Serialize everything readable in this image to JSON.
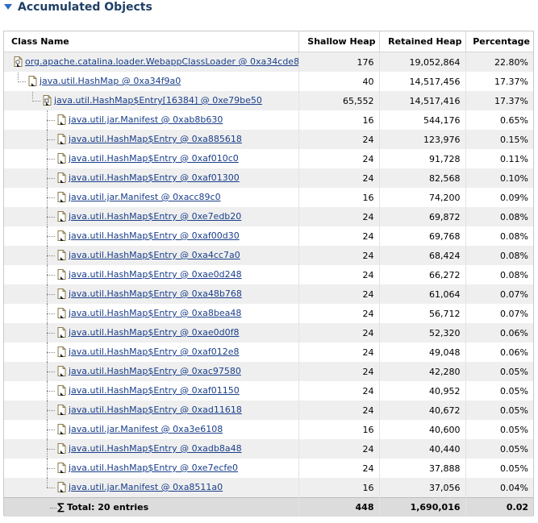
{
  "section": {
    "title": "Accumulated Objects"
  },
  "table": {
    "headers": {
      "class_name": "Class Name",
      "shallow": "Shallow Heap",
      "retained": "Retained Heap",
      "percentage": "Percentage"
    },
    "rows": [
      {
        "name": "org.apache.catalina.loader.WebappClassLoader @ 0xa34cde8",
        "shallow": "176",
        "retained": "19,052,864",
        "pct": "22.80%",
        "depth": 0,
        "icon": "class-loader-icon"
      },
      {
        "name": "java.util.HashMap @ 0xa34f9a0",
        "shallow": "40",
        "retained": "14,517,456",
        "pct": "17.37%",
        "depth": 1,
        "icon": "object-icon"
      },
      {
        "name": "java.util.HashMap$Entry[16384] @ 0xe79be50",
        "shallow": "65,552",
        "retained": "14,517,416",
        "pct": "17.37%",
        "depth": 2,
        "icon": "array-icon"
      },
      {
        "name": "java.util.jar.Manifest @ 0xab8b630",
        "shallow": "16",
        "retained": "544,176",
        "pct": "0.65%",
        "depth": 3,
        "icon": "object-icon"
      },
      {
        "name": "java.util.HashMap$Entry @ 0xa885618",
        "shallow": "24",
        "retained": "123,976",
        "pct": "0.15%",
        "depth": 3,
        "icon": "object-icon"
      },
      {
        "name": "java.util.HashMap$Entry @ 0xaf010c0",
        "shallow": "24",
        "retained": "91,728",
        "pct": "0.11%",
        "depth": 3,
        "icon": "object-icon"
      },
      {
        "name": "java.util.HashMap$Entry @ 0xaf01300",
        "shallow": "24",
        "retained": "82,568",
        "pct": "0.10%",
        "depth": 3,
        "icon": "object-icon"
      },
      {
        "name": "java.util.jar.Manifest @ 0xacc89c0",
        "shallow": "16",
        "retained": "74,200",
        "pct": "0.09%",
        "depth": 3,
        "icon": "object-icon"
      },
      {
        "name": "java.util.HashMap$Entry @ 0xe7edb20",
        "shallow": "24",
        "retained": "69,872",
        "pct": "0.08%",
        "depth": 3,
        "icon": "object-icon"
      },
      {
        "name": "java.util.HashMap$Entry @ 0xaf00d30",
        "shallow": "24",
        "retained": "69,768",
        "pct": "0.08%",
        "depth": 3,
        "icon": "object-icon"
      },
      {
        "name": "java.util.HashMap$Entry @ 0xa4cc7a0",
        "shallow": "24",
        "retained": "68,424",
        "pct": "0.08%",
        "depth": 3,
        "icon": "object-icon"
      },
      {
        "name": "java.util.HashMap$Entry @ 0xae0d248",
        "shallow": "24",
        "retained": "66,272",
        "pct": "0.08%",
        "depth": 3,
        "icon": "object-icon"
      },
      {
        "name": "java.util.HashMap$Entry @ 0xa48b768",
        "shallow": "24",
        "retained": "61,064",
        "pct": "0.07%",
        "depth": 3,
        "icon": "object-icon"
      },
      {
        "name": "java.util.HashMap$Entry @ 0xa8bea48",
        "shallow": "24",
        "retained": "56,712",
        "pct": "0.07%",
        "depth": 3,
        "icon": "object-icon"
      },
      {
        "name": "java.util.HashMap$Entry @ 0xae0d0f8",
        "shallow": "24",
        "retained": "52,320",
        "pct": "0.06%",
        "depth": 3,
        "icon": "object-icon"
      },
      {
        "name": "java.util.HashMap$Entry @ 0xaf012e8",
        "shallow": "24",
        "retained": "49,048",
        "pct": "0.06%",
        "depth": 3,
        "icon": "object-icon"
      },
      {
        "name": "java.util.HashMap$Entry @ 0xac97580",
        "shallow": "24",
        "retained": "42,280",
        "pct": "0.05%",
        "depth": 3,
        "icon": "object-icon"
      },
      {
        "name": "java.util.HashMap$Entry @ 0xaf01150",
        "shallow": "24",
        "retained": "40,952",
        "pct": "0.05%",
        "depth": 3,
        "icon": "object-icon"
      },
      {
        "name": "java.util.HashMap$Entry @ 0xad11618",
        "shallow": "24",
        "retained": "40,672",
        "pct": "0.05%",
        "depth": 3,
        "icon": "object-icon"
      },
      {
        "name": "java.util.jar.Manifest @ 0xa3e6108",
        "shallow": "16",
        "retained": "40,600",
        "pct": "0.05%",
        "depth": 3,
        "icon": "object-icon"
      },
      {
        "name": "java.util.HashMap$Entry @ 0xadb8a48",
        "shallow": "24",
        "retained": "40,440",
        "pct": "0.05%",
        "depth": 3,
        "icon": "object-icon"
      },
      {
        "name": "java.util.HashMap$Entry @ 0xe7ecfe0",
        "shallow": "24",
        "retained": "37,888",
        "pct": "0.05%",
        "depth": 3,
        "icon": "object-icon"
      },
      {
        "name": "java.util.jar.Manifest @ 0xa8511a0",
        "shallow": "16",
        "retained": "37,056",
        "pct": "0.04%",
        "depth": 3,
        "icon": "object-icon"
      }
    ],
    "total": {
      "label": "Total: 20 entries",
      "shallow": "448",
      "retained": "1,690,016",
      "pct": "0.02",
      "icon": "sigma-icon"
    }
  }
}
